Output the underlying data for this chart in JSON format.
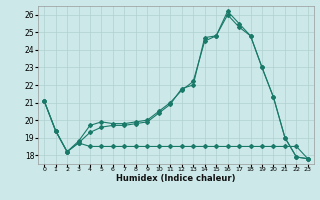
{
  "xlabel": "Humidex (Indice chaleur)",
  "bg_color": "#cde8e8",
  "grid_color": "#b0d0d0",
  "line_color": "#1a7a6a",
  "xlim": [
    -0.5,
    23.5
  ],
  "ylim": [
    17.5,
    26.5
  ],
  "yticks": [
    18,
    19,
    20,
    21,
    22,
    23,
    24,
    25,
    26
  ],
  "xticks": [
    0,
    1,
    2,
    3,
    4,
    5,
    6,
    7,
    8,
    9,
    10,
    11,
    12,
    13,
    14,
    15,
    16,
    17,
    18,
    19,
    20,
    21,
    22,
    23
  ],
  "line1_x": [
    0,
    1,
    2,
    3,
    4,
    5,
    6,
    7,
    8,
    9,
    10,
    11,
    12,
    13,
    14,
    15,
    16,
    17,
    18,
    19,
    20,
    21,
    22,
    23
  ],
  "line1_y": [
    21.1,
    19.4,
    18.2,
    18.7,
    19.3,
    19.6,
    19.7,
    19.7,
    19.8,
    19.9,
    20.4,
    20.9,
    21.8,
    22.0,
    24.7,
    24.8,
    26.2,
    25.5,
    24.8,
    23.0,
    21.3,
    19.0,
    17.9,
    17.8
  ],
  "line2_x": [
    0,
    1,
    2,
    3,
    4,
    5,
    6,
    7,
    8,
    9,
    10,
    11,
    12,
    13,
    14,
    15,
    16,
    17,
    18,
    19,
    20,
    21,
    22,
    23
  ],
  "line2_y": [
    21.1,
    19.4,
    18.2,
    18.8,
    19.7,
    19.9,
    19.8,
    19.8,
    19.9,
    20.0,
    20.5,
    21.0,
    21.7,
    22.2,
    24.5,
    24.8,
    26.0,
    25.3,
    24.8,
    23.0,
    21.3,
    19.0,
    17.9,
    17.8
  ],
  "line3_x": [
    0,
    1,
    2,
    3,
    4,
    5,
    6,
    7,
    8,
    9,
    10,
    11,
    12,
    13,
    14,
    15,
    16,
    17,
    18,
    19,
    20,
    21,
    22,
    23
  ],
  "line3_y": [
    21.1,
    19.4,
    18.2,
    18.7,
    18.5,
    18.5,
    18.5,
    18.5,
    18.5,
    18.5,
    18.5,
    18.5,
    18.5,
    18.5,
    18.5,
    18.5,
    18.5,
    18.5,
    18.5,
    18.5,
    18.5,
    18.5,
    18.5,
    17.8
  ]
}
